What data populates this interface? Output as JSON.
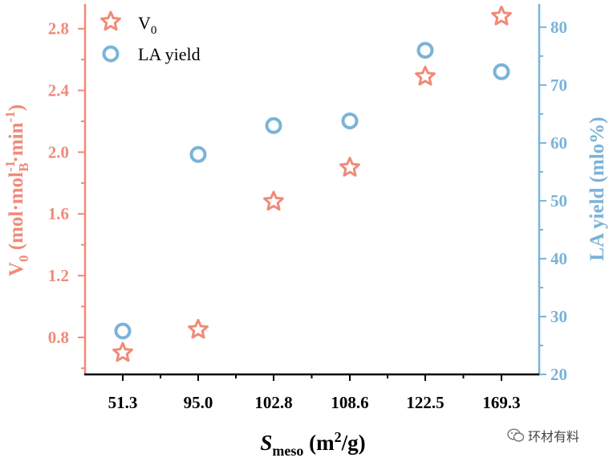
{
  "chart_data": {
    "type": "scatter",
    "categories": [
      "51.3",
      "95.0",
      "102.8",
      "108.6",
      "122.5",
      "169.3"
    ],
    "series": [
      {
        "name": "V0",
        "legend_main": "V",
        "legend_sub": "0",
        "marker": "star",
        "color": "#f08a78",
        "axis": "left",
        "values": [
          0.7,
          0.85,
          1.68,
          1.9,
          2.49,
          2.88
        ]
      },
      {
        "name": "LA yield",
        "legend_label": "LA yield",
        "marker": "circle",
        "color": "#7ab3d8",
        "axis": "right",
        "values": [
          27.5,
          58.0,
          63.0,
          63.8,
          76.0,
          72.3
        ]
      }
    ],
    "y_left": {
      "range": [
        0.56,
        2.96
      ],
      "ticks": [
        "0.8",
        "1.2",
        "1.6",
        "2.0",
        "2.4",
        "2.8"
      ],
      "label": {
        "main": "V",
        "sub": "0",
        "unit_open": " (mol·mol",
        "unit_sup1": "-1",
        "unit_sub_b": "B",
        "unit_mid": "·min",
        "unit_sup2": "-1",
        "unit_close": ")"
      }
    },
    "y_right": {
      "range": [
        20,
        84
      ],
      "ticks": [
        "20",
        "30",
        "40",
        "50",
        "60",
        "70",
        "80"
      ],
      "label": "LA yield (mlo%)"
    },
    "x_axis": {
      "label_main": "S",
      "label_sub": "meso",
      "label_unit_open": " (m",
      "label_sup": "2",
      "label_unit_close": "/g)"
    },
    "legend_position": "top-left"
  },
  "watermark": {
    "text": "环材有料",
    "icon": "wechat-icon"
  }
}
